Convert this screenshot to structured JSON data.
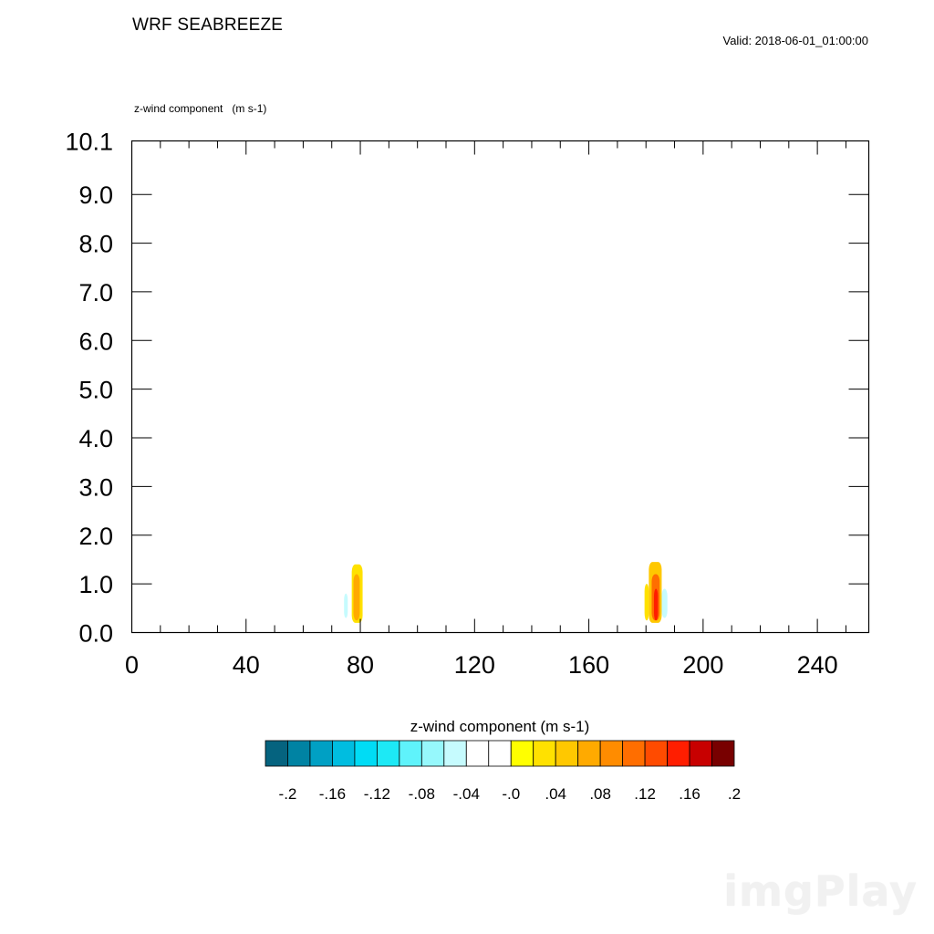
{
  "title": "WRF SEABREEZE",
  "valid_label": "Valid: 2018-06-01_01:00:00",
  "field_label": "z-wind component   (m s-1)",
  "watermark": "imgPlay",
  "chart_data": {
    "type": "heatmap",
    "field": "z-wind component",
    "units": "m s-1",
    "xlim": [
      0,
      258
    ],
    "ylim": [
      0,
      10.1
    ],
    "x_ticks": [
      0,
      40,
      80,
      120,
      160,
      200,
      240
    ],
    "x_tick_labels": [
      "0",
      "40",
      "80",
      "120",
      "160",
      "200",
      "240"
    ],
    "x_minor_step": 10,
    "y_ticks": [
      0,
      1,
      2,
      3,
      4,
      5,
      6,
      7,
      8,
      9,
      10.1
    ],
    "y_tick_labels": [
      "0.0",
      "1.0",
      "2.0",
      "3.0",
      "4.0",
      "5.0",
      "6.0",
      "7.0",
      "8.0",
      "9.0",
      "10.1"
    ],
    "grid": false,
    "colorbar": {
      "title": "z-wind component  (m s-1)",
      "position": "bottom",
      "colors": [
        "#05637f",
        "#0083a3",
        "#00a0c4",
        "#00bde0",
        "#00dcf5",
        "#1de9f5",
        "#5ff3fb",
        "#96f8fc",
        "#c6fbfe",
        "#ffffff",
        "#ffffff",
        "#ffff00",
        "#ffe100",
        "#ffc800",
        "#ffaa00",
        "#ff8c00",
        "#ff6e00",
        "#ff4b00",
        "#ff1e00",
        "#c80000",
        "#780000"
      ],
      "tick_labels": [
        "-.2",
        "-.16",
        "-.12",
        "-.08",
        "-.04",
        "-.0",
        ".04",
        ".08",
        ".12",
        ".16",
        ".2"
      ]
    },
    "features": [
      {
        "x_center": 79,
        "regions": [
          {
            "x": [
              73.5,
              76.5
            ],
            "y": [
              0.2,
              1.05
            ],
            "value": -0.03
          },
          {
            "x": [
              74.3,
              75.6
            ],
            "y": [
              0.3,
              0.8
            ],
            "value": -0.05
          },
          {
            "x": [
              77.0,
              80.8
            ],
            "y": [
              0.2,
              1.4
            ],
            "value": 0.03
          },
          {
            "x": [
              77.6,
              79.8
            ],
            "y": [
              0.25,
              1.2
            ],
            "value": 0.06
          }
        ]
      },
      {
        "x_center": 184,
        "regions": [
          {
            "x": [
              184.5,
              186.5
            ],
            "y": [
              1.0,
              2.5
            ],
            "value": -0.02
          },
          {
            "x": [
              184.0,
              188.5
            ],
            "y": [
              0.2,
              1.3
            ],
            "value": -0.03
          },
          {
            "x": [
              185.5,
              187.5
            ],
            "y": [
              0.3,
              0.9
            ],
            "value": -0.06
          },
          {
            "x": [
              179.5,
              181.0
            ],
            "y": [
              0.25,
              1.0
            ],
            "value": 0.03
          },
          {
            "x": [
              181.0,
              185.5
            ],
            "y": [
              0.2,
              1.45
            ],
            "value": 0.05
          },
          {
            "x": [
              182.0,
              184.8
            ],
            "y": [
              0.25,
              1.2
            ],
            "value": 0.1
          },
          {
            "x": [
              182.8,
              184.2
            ],
            "y": [
              0.25,
              0.9
            ],
            "value": 0.15
          }
        ]
      }
    ]
  }
}
